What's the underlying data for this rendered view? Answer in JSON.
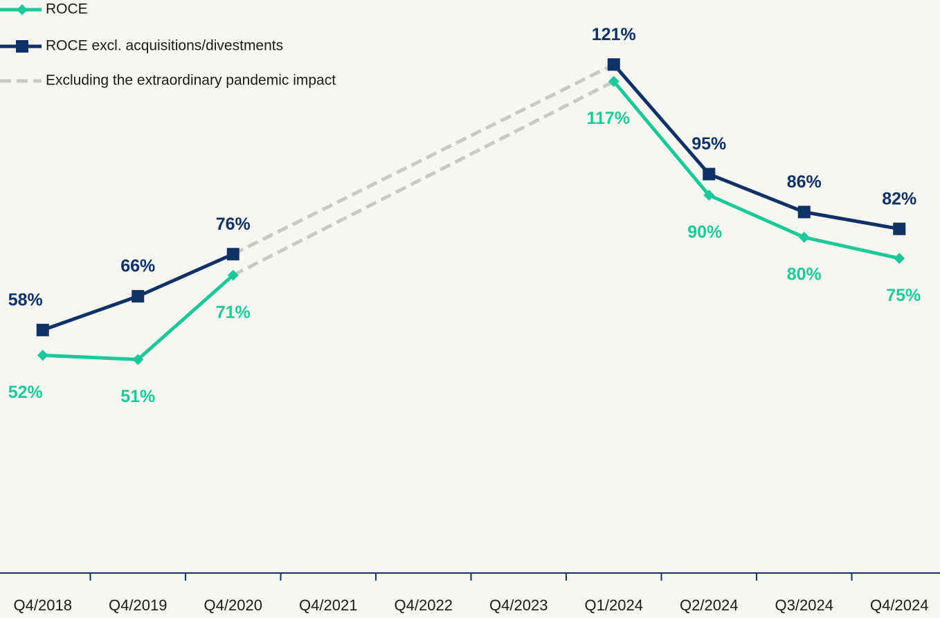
{
  "chart_data": {
    "type": "line",
    "categories": [
      "Q4/2018",
      "Q4/2019",
      "Q4/2020",
      "Q4/2021",
      "Q4/2022",
      "Q4/2023",
      "Q1/2024",
      "Q2/2024",
      "Q3/2024",
      "Q4/2024"
    ],
    "series": [
      {
        "name": "ROCE",
        "color": "#1dc99a",
        "marker": "diamond",
        "values": [
          52,
          51,
          71,
          null,
          null,
          null,
          117,
          90,
          80,
          75
        ],
        "value_labels": [
          "52%",
          "51%",
          "71%",
          null,
          null,
          null,
          "117%",
          "90%",
          "80%",
          "75%"
        ]
      },
      {
        "name": "ROCE excl. acquisitions/divestments",
        "color": "#0e3166",
        "marker": "square",
        "values": [
          58,
          66,
          76,
          null,
          null,
          null,
          121,
          95,
          86,
          82
        ],
        "value_labels": [
          "58%",
          "66%",
          "76%",
          null,
          null,
          null,
          "121%",
          "95%",
          "86%",
          "82%"
        ]
      }
    ],
    "gap_line": {
      "name": "Excluding the extraordinary pandemic impact",
      "color": "#c9c9c6"
    },
    "ylim": [
      0,
      135
    ]
  }
}
